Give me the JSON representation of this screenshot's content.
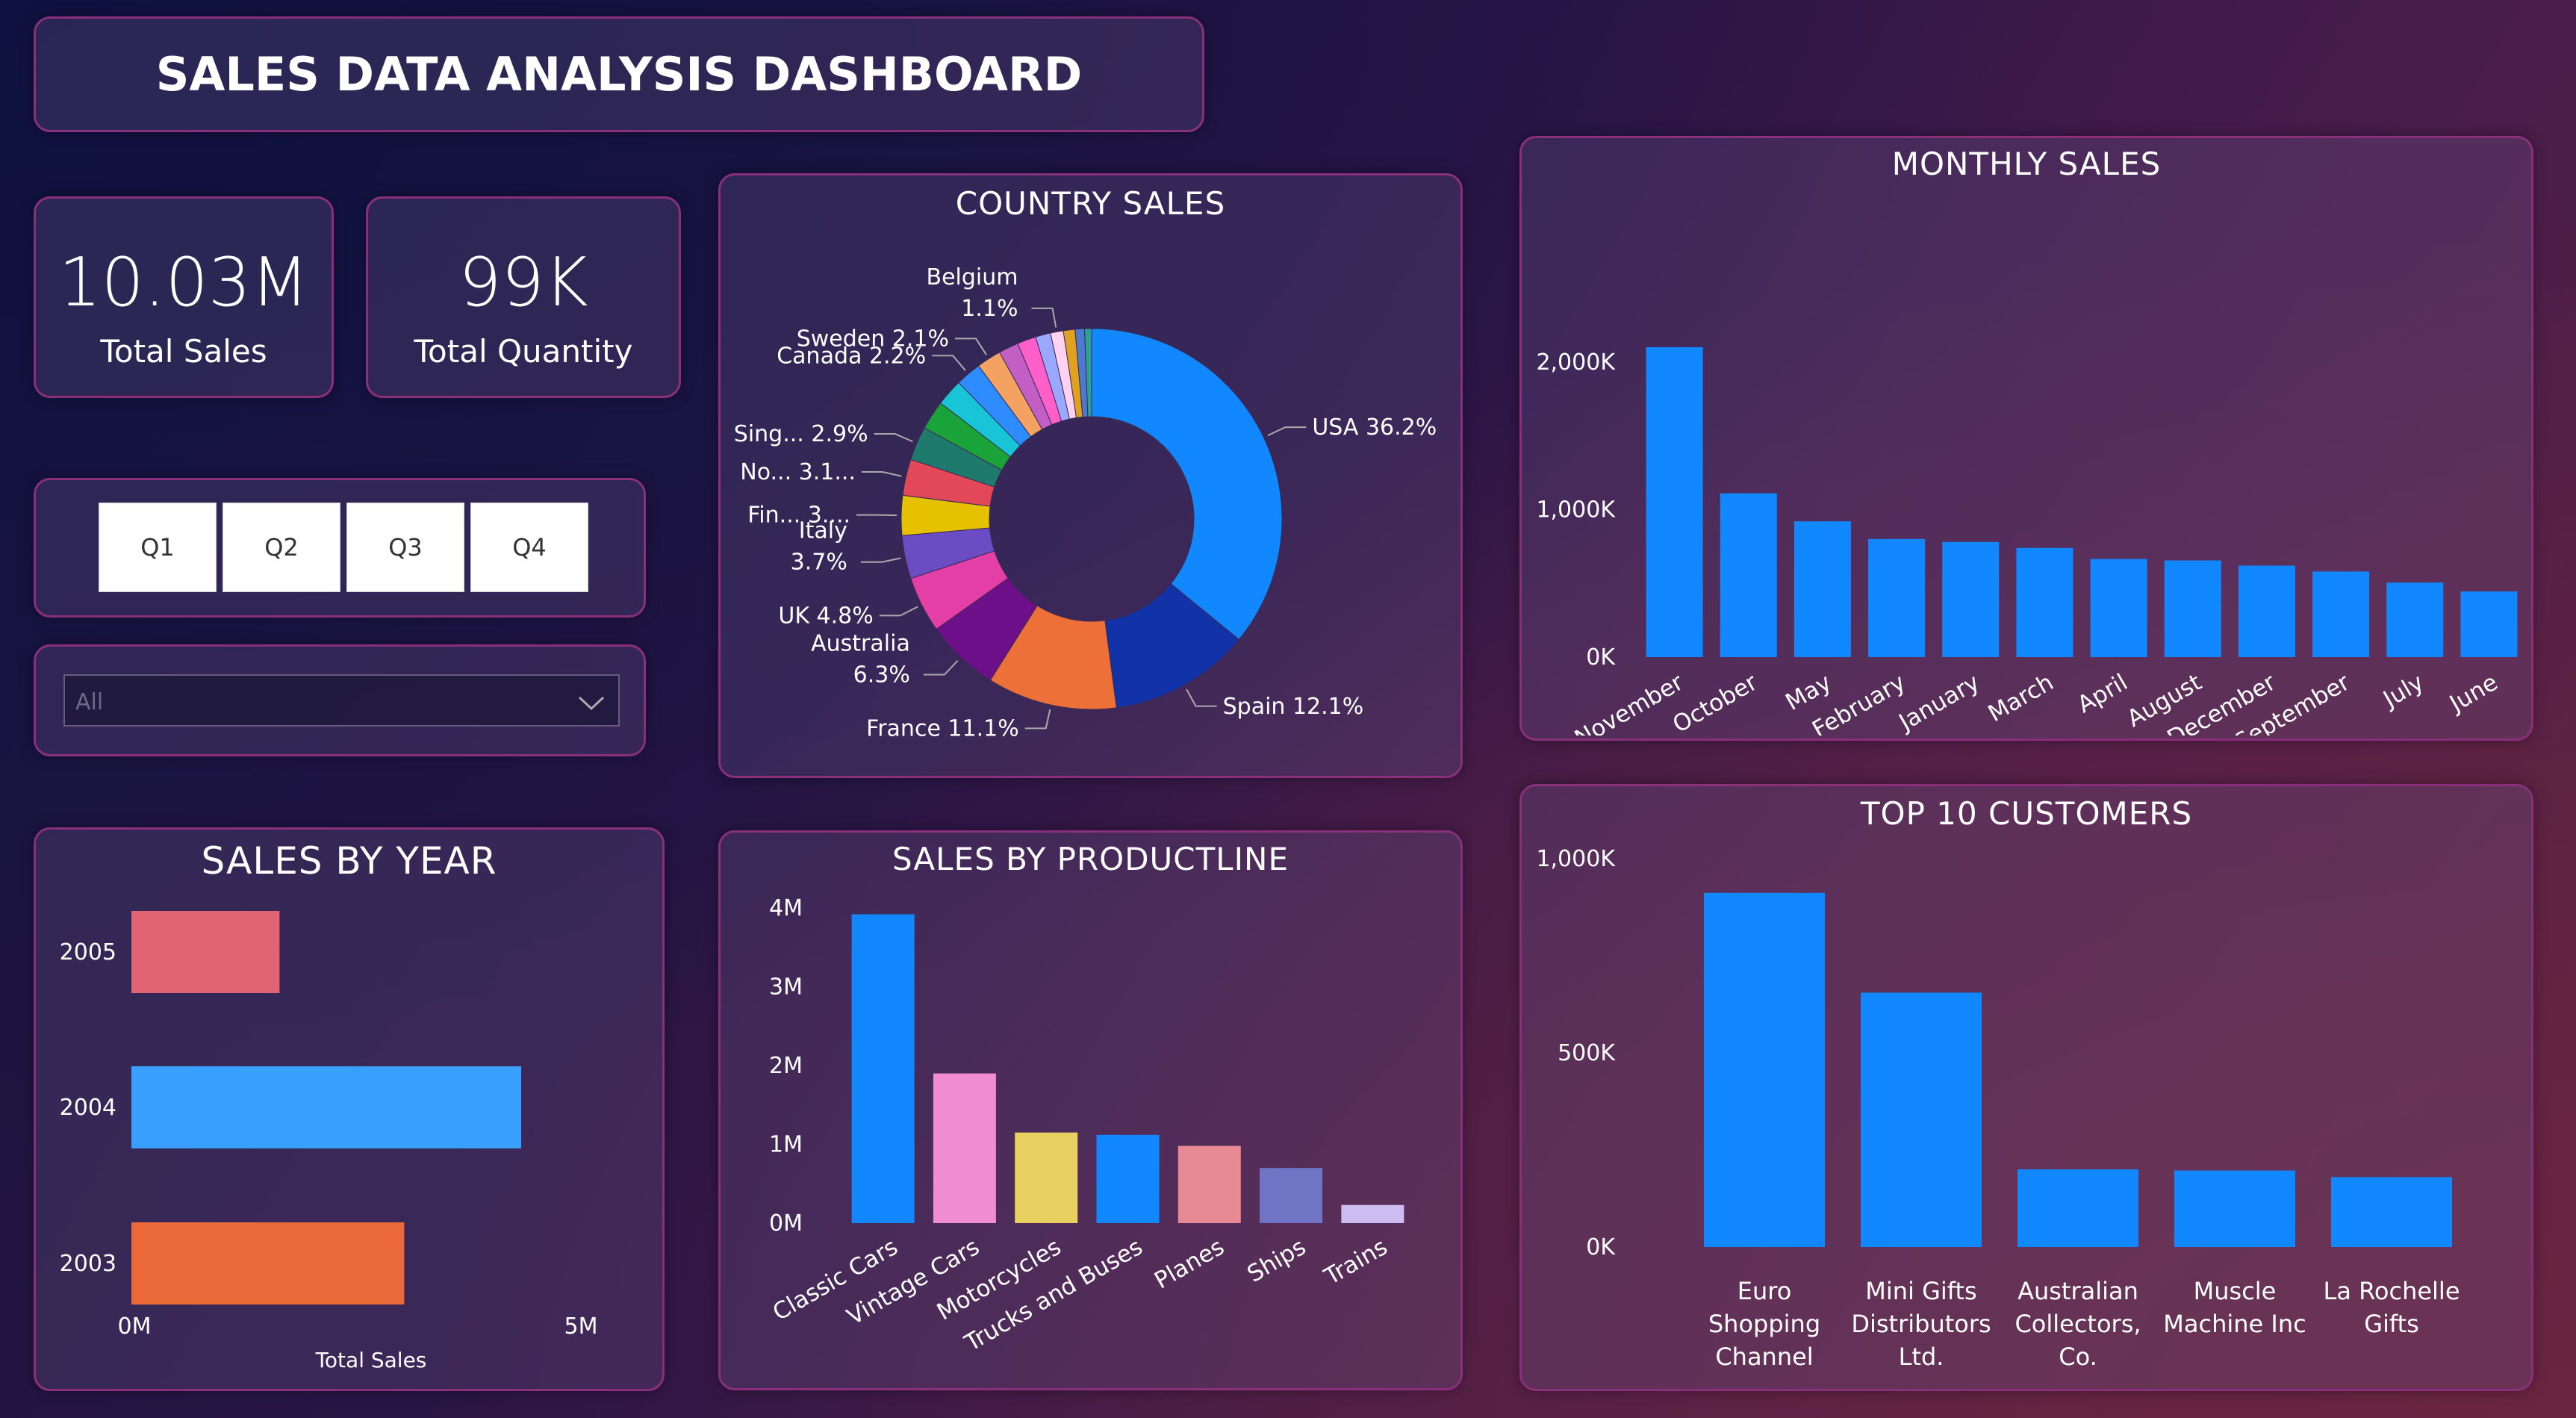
{
  "dashboard": {
    "title": "SALES DATA ANALYSIS DASHBOARD"
  },
  "kpis": [
    {
      "value": "10.03M",
      "label": "Total Sales"
    },
    {
      "value": "99K",
      "label": "Total Quantity"
    }
  ],
  "slicer": {
    "quarters": [
      "Q1",
      "Q2",
      "Q3",
      "Q4"
    ],
    "dropdown_value": "All"
  },
  "colors": {
    "accent_blue": "#1188ff",
    "panel_border": "#8a2f7c"
  },
  "chart_data": [
    {
      "id": "country",
      "type": "pie",
      "title": "COUNTRY SALES",
      "donut": true,
      "slices": [
        {
          "label": "USA",
          "pct_label": "36.2%",
          "value": 36.2,
          "color": "#1188ff"
        },
        {
          "label": "Spain",
          "pct_label": "12.1%",
          "value": 12.1,
          "color": "#1232a8"
        },
        {
          "label": "France",
          "pct_label": "11.1%",
          "value": 11.1,
          "color": "#ec7038"
        },
        {
          "label": "Australia",
          "pct_label": "6.3%",
          "value": 6.3,
          "color": "#6e0f8a"
        },
        {
          "label": "UK",
          "pct_label": "4.8%",
          "value": 4.8,
          "color": "#e33fa7"
        },
        {
          "label": "Italy",
          "pct_label": "3.7%",
          "value": 3.7,
          "color": "#6b4cc2"
        },
        {
          "label": "Fin...",
          "pct_label": "3....",
          "value": 3.4,
          "color": "#e6c100"
        },
        {
          "label": "No...",
          "pct_label": "3.1...",
          "value": 3.1,
          "color": "#e34858"
        },
        {
          "label": "Sing...",
          "pct_label": "2.9%",
          "value": 2.9,
          "color": "#1f7a6e"
        },
        {
          "label": "",
          "pct_label": "",
          "value": 2.5,
          "color": "#1aa338"
        },
        {
          "label": "",
          "pct_label": "",
          "value": 2.3,
          "color": "#18c5d6"
        },
        {
          "label": "Canada",
          "pct_label": "2.2%",
          "value": 2.2,
          "color": "#2f8cff"
        },
        {
          "label": "Sweden",
          "pct_label": "2.1%",
          "value": 2.1,
          "color": "#f4a261"
        },
        {
          "label": "",
          "pct_label": "",
          "value": 1.7,
          "color": "#c25ec4"
        },
        {
          "label": "",
          "pct_label": "",
          "value": 1.6,
          "color": "#ff5fc8"
        },
        {
          "label": "",
          "pct_label": "",
          "value": 1.3,
          "color": "#9aa8ff"
        },
        {
          "label": "Belgium",
          "pct_label": "1.1%",
          "value": 1.1,
          "color": "#ffd3f0"
        },
        {
          "label": "",
          "pct_label": "",
          "value": 1.0,
          "color": "#e0a020"
        },
        {
          "label": "",
          "pct_label": "",
          "value": 0.8,
          "color": "#4a7bd1"
        },
        {
          "label": "",
          "pct_label": "",
          "value": 0.6,
          "color": "#2aa198"
        }
      ]
    },
    {
      "id": "monthly",
      "type": "bar",
      "title": "MONTHLY SALES",
      "categories": [
        "November",
        "October",
        "May",
        "February",
        "January",
        "March",
        "April",
        "August",
        "December",
        "September",
        "July",
        "June"
      ],
      "values": [
        2100,
        1110,
        920,
        800,
        780,
        740,
        665,
        655,
        620,
        580,
        505,
        445
      ],
      "ylim": [
        0,
        2100
      ],
      "yticks": [
        0,
        1000,
        2000
      ],
      "ytick_labels": [
        "0K",
        "1,000K",
        "2,000K"
      ],
      "color": "#1188ff"
    },
    {
      "id": "customers",
      "type": "bar",
      "title": "TOP 10 CUSTOMERS",
      "categories": [
        [
          "Euro",
          "Shopping",
          "Channel"
        ],
        [
          "Mini Gifts",
          "Distributors",
          "Ltd."
        ],
        [
          "Australian",
          "Collectors,",
          "Co."
        ],
        [
          "Muscle",
          "Machine Inc"
        ],
        [
          "La Rochelle",
          "Gifts"
        ]
      ],
      "values": [
        912,
        655,
        200,
        197,
        180
      ],
      "ylim": [
        0,
        1000
      ],
      "yticks": [
        0,
        500,
        1000
      ],
      "ytick_labels": [
        "0K",
        "500K",
        "1,000K"
      ],
      "color": "#1188ff"
    },
    {
      "id": "year",
      "type": "bar",
      "orientation": "horizontal",
      "title": "SALES BY YEAR",
      "categories": [
        "2005",
        "2004",
        "2003"
      ],
      "values": [
        1.9,
        5.0,
        3.5
      ],
      "colors": [
        "#e06472",
        "#3aa0ff",
        "#ec6a3a"
      ],
      "xlim": [
        0,
        5
      ],
      "xtick_labels": [
        "0M",
        "5M"
      ],
      "xlabel": "Total Sales"
    },
    {
      "id": "productline",
      "type": "bar",
      "title": "SALES BY PRODUCTLINE",
      "categories": [
        "Classic Cars",
        "Vintage Cars",
        "Motorcycles",
        "Trucks and Buses",
        "Planes",
        "Ships",
        "Trains"
      ],
      "values": [
        3.92,
        1.9,
        1.15,
        1.12,
        0.98,
        0.7,
        0.23
      ],
      "colors": [
        "#1188ff",
        "#ef8dd0",
        "#e8d060",
        "#1188ff",
        "#e88a94",
        "#6f75c4",
        "#cdbcf2"
      ],
      "ylim": [
        0,
        4
      ],
      "yticks": [
        0,
        1,
        2,
        3,
        4
      ],
      "ytick_labels": [
        "0M",
        "1M",
        "2M",
        "3M",
        "4M"
      ]
    }
  ]
}
